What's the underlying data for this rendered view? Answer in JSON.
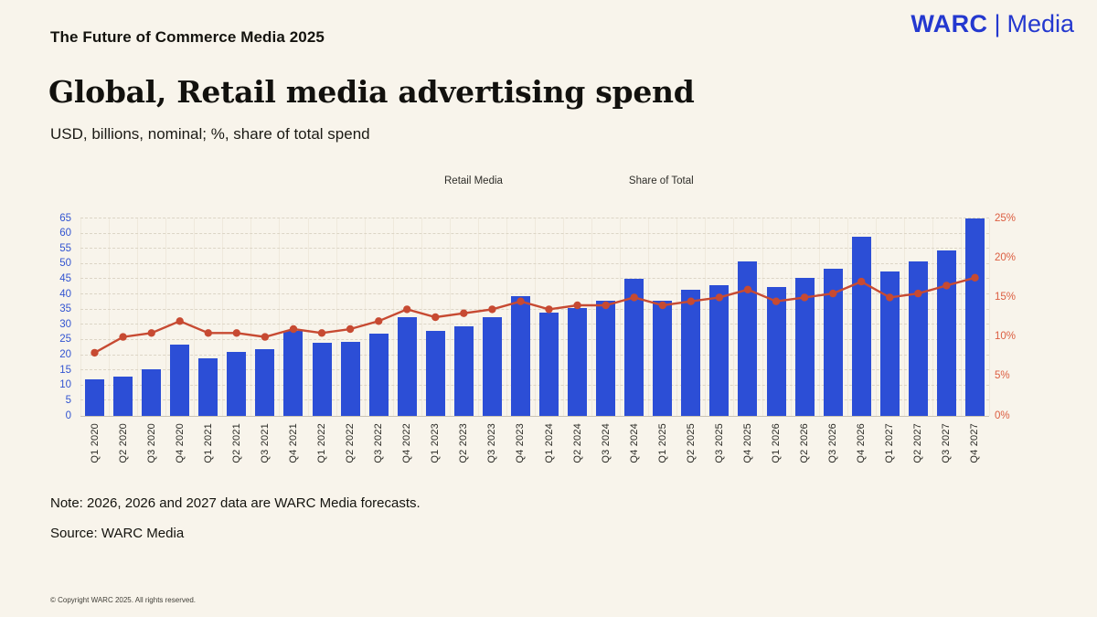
{
  "page": {
    "kicker": "The Future of Commerce Media 2025",
    "logo": {
      "brand": "WARC",
      "divider": "|",
      "product": "Media",
      "color": "#2438CF"
    },
    "title": "Global, Retail media advertising spend",
    "subtitle": "USD, billions, nominal; %, share of total spend",
    "note": "Note: 2026, 2026 and 2027 data are WARC Media forecasts.",
    "source": "Source: WARC Media",
    "copyright": "© Copyright WARC 2025. All rights reserved."
  },
  "colors": {
    "background": "#F8F4EB",
    "bar_blue": "#2C4ED6",
    "line_red": "#C74A32",
    "left_axis_blue": "#3254D1",
    "right_axis_orange": "#DC5E41",
    "grid": "#DCD5C6"
  },
  "chart_data": {
    "type": "bar",
    "subtype": "bar+line combo, dual axis",
    "title": "Global, Retail media advertising spend",
    "subtitle": "USD, billions, nominal; %, share of total spend",
    "legend_position": "top-center",
    "grid": "horizontal dashed, faint vertical slot lines",
    "categories": [
      "Q1 2020",
      "Q2 2020",
      "Q3 2020",
      "Q4 2020",
      "Q1 2021",
      "Q2 2021",
      "Q3 2021",
      "Q4 2021",
      "Q1 2022",
      "Q2 2022",
      "Q3 2022",
      "Q4 2022",
      "Q1 2023",
      "Q2 2023",
      "Q3 2023",
      "Q4 2023",
      "Q1 2024",
      "Q2 2024",
      "Q3 2024",
      "Q4 2024",
      "Q1 2025",
      "Q2 2025",
      "Q3 2025",
      "Q4 2025",
      "Q1 2026",
      "Q2 2026",
      "Q3 2026",
      "Q4 2026",
      "Q1 2027",
      "Q2 2027",
      "Q3 2027",
      "Q4 2027"
    ],
    "series": [
      {
        "name": "Retail Media",
        "type": "bar",
        "axis": "left",
        "unit": "USD billions",
        "color": "#2C4ED6",
        "values": [
          12,
          13,
          15.5,
          23.5,
          19,
          21,
          22,
          28,
          24,
          24.5,
          27,
          32.5,
          28,
          29.5,
          32.5,
          39.5,
          34,
          35.5,
          38,
          45,
          38,
          41.5,
          43,
          51,
          42.5,
          45.5,
          48.5,
          59,
          47.5,
          51,
          54.5,
          65
        ]
      },
      {
        "name": "Share of Total",
        "type": "line",
        "axis": "right",
        "unit": "% of total spend",
        "color": "#C74A32",
        "values": [
          8,
          10,
          10.5,
          12,
          10.5,
          10.5,
          10,
          11,
          10.5,
          11,
          12,
          13.5,
          12.5,
          13,
          13.5,
          14.5,
          13.5,
          14,
          14,
          15,
          14,
          14.5,
          15,
          16,
          14.5,
          15,
          15.5,
          17,
          15,
          15.5,
          16.5,
          17.5
        ]
      }
    ],
    "left_axis": {
      "min": 0,
      "max": 65,
      "step": 5,
      "color": "#3254D1"
    },
    "right_axis": {
      "min": 0,
      "max": 25,
      "step": 5,
      "suffix": "%",
      "color": "#DC5E41"
    }
  }
}
